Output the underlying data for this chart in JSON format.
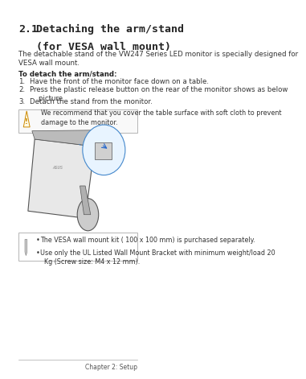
{
  "bg_color": "#ffffff",
  "title_number": "2.1",
  "title_line1": "Detaching the arm/stand",
  "title_line2": "(for VESA wall mount)",
  "intro_text": "The detachable stand of the VW247 Series LED monitor is specially designed for\nVESA wall mount.",
  "bold_label": "To detach the arm/stand:",
  "steps": [
    "Have the front of the monitor face down on a table.",
    "Press the plastic release button on the rear of the monitor shows as below\n    picture.",
    "Detach the stand from the monitor."
  ],
  "warning_text": "We recommend that you cover the table surface with soft cloth to prevent\ndamage to the monitor.",
  "note_bullets": [
    "The VESA wall mount kit ( 100 x 100 mm) is purchased separately.",
    "Use only the UL Listed Wall Mount Bracket with minimum weight/load 20\n  Kg (Screw size: M4 x 12 mm)."
  ],
  "footer_text": "Chapter 2: Setup",
  "title_fontsize": 9.5,
  "body_fontsize": 6.2,
  "warning_fontsize": 5.8,
  "note_fontsize": 5.8,
  "footer_fontsize": 5.5
}
